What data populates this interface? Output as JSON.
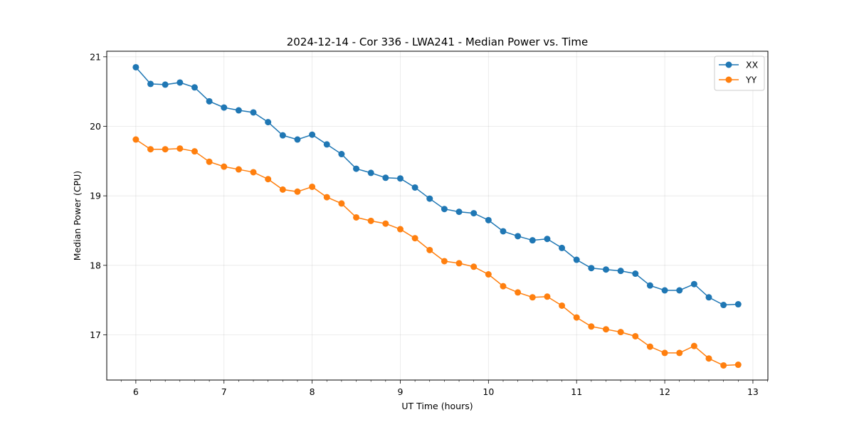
{
  "chart_data": {
    "type": "line",
    "title": "2024-12-14 - Cor 336 - LWA241 - Median Power vs. Time",
    "xlabel": "UT Time (hours)",
    "ylabel": "Median Power (CPU)",
    "xlim": [
      5.67,
      13.17
    ],
    "ylim": [
      16.35,
      21.08
    ],
    "xticks": [
      6,
      7,
      8,
      9,
      10,
      11,
      12,
      13
    ],
    "xtick_labels": [
      "6",
      "7",
      "8",
      "9",
      "10",
      "11",
      "12",
      "13"
    ],
    "yticks": [
      17,
      18,
      19,
      20,
      21
    ],
    "ytick_labels": [
      "17",
      "18",
      "19",
      "20",
      "21"
    ],
    "grid": true,
    "legend_position": "top-right",
    "x": [
      6.0,
      6.1667,
      6.3333,
      6.5,
      6.6667,
      6.8333,
      7.0,
      7.1667,
      7.3333,
      7.5,
      7.6667,
      7.8333,
      8.0,
      8.1667,
      8.3333,
      8.5,
      8.6667,
      8.8333,
      9.0,
      9.1667,
      9.3333,
      9.5,
      9.6667,
      9.8333,
      10.0,
      10.1667,
      10.3333,
      10.5,
      10.6667,
      10.8333,
      11.0,
      11.1667,
      11.3333,
      11.5,
      11.6667,
      11.8333,
      12.0,
      12.1667,
      12.3333,
      12.5,
      12.6667,
      12.8333
    ],
    "series": [
      {
        "name": "XX",
        "color": "#1f77b4",
        "values": [
          20.85,
          20.61,
          20.6,
          20.63,
          20.56,
          20.36,
          20.27,
          20.23,
          20.2,
          20.06,
          19.87,
          19.81,
          19.88,
          19.74,
          19.6,
          19.39,
          19.33,
          19.26,
          19.25,
          19.12,
          18.96,
          18.81,
          18.77,
          18.75,
          18.65,
          18.49,
          18.42,
          18.36,
          18.38,
          18.25,
          18.08,
          17.96,
          17.94,
          17.92,
          17.88,
          17.71,
          17.64,
          17.64,
          17.73,
          17.54,
          17.43,
          17.44
        ]
      },
      {
        "name": "YY",
        "color": "#ff7f0e",
        "values": [
          19.81,
          19.67,
          19.67,
          19.68,
          19.64,
          19.49,
          19.42,
          19.38,
          19.34,
          19.24,
          19.09,
          19.06,
          19.13,
          18.98,
          18.89,
          18.69,
          18.64,
          18.6,
          18.52,
          18.39,
          18.22,
          18.06,
          18.03,
          17.98,
          17.87,
          17.7,
          17.61,
          17.54,
          17.55,
          17.42,
          17.25,
          17.12,
          17.08,
          17.04,
          16.98,
          16.83,
          16.74,
          16.74,
          16.84,
          16.66,
          16.56,
          16.57
        ]
      }
    ]
  }
}
